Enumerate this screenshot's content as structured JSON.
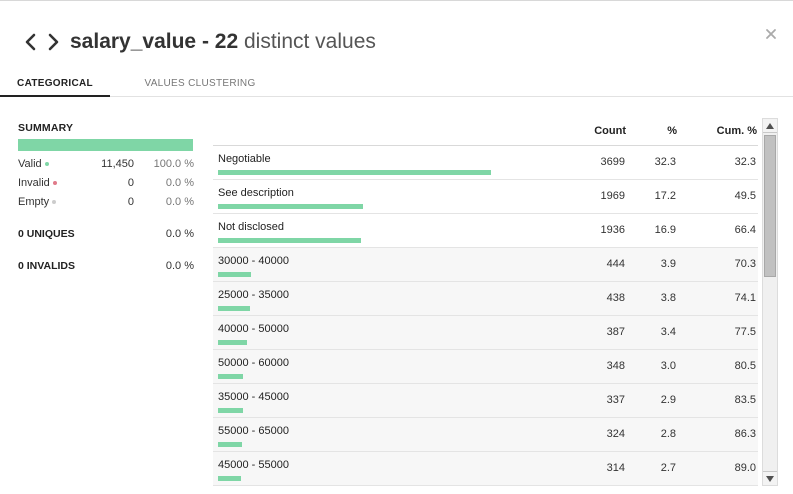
{
  "header": {
    "column_name": "salary_value",
    "separator": " - ",
    "distinct_count": "22",
    "distinct_suffix": " distinct values"
  },
  "tabs": [
    {
      "label": "CATEGORICAL",
      "active": true
    },
    {
      "label": "VALUES CLUSTERING",
      "active": false
    }
  ],
  "summary": {
    "title": "SUMMARY",
    "rows": [
      {
        "label": "Valid",
        "count": "11,450",
        "pct": "100.0 %",
        "dot_color": "#7fd6a6"
      },
      {
        "label": "Invalid",
        "count": "0",
        "pct": "0.0 %",
        "dot_color": "#e07b8a"
      },
      {
        "label": "Empty",
        "count": "0",
        "pct": "0.0 %",
        "dot_color": "#cccccc"
      }
    ],
    "uniques": {
      "label": "0 UNIQUES",
      "pct": "0.0 %"
    },
    "invalids": {
      "label": "0 INVALIDS",
      "pct": "0.0 %"
    }
  },
  "table": {
    "headers": {
      "count": "Count",
      "pct": "%",
      "cum": "Cum. %"
    },
    "rows": [
      {
        "value": "Negotiable",
        "count": "3699",
        "pct": "32.3",
        "cum": "32.3",
        "share": 0.323
      },
      {
        "value": "See description",
        "count": "1969",
        "pct": "17.2",
        "cum": "49.5",
        "share": 0.172
      },
      {
        "value": "Not disclosed",
        "count": "1936",
        "pct": "16.9",
        "cum": "66.4",
        "share": 0.169
      },
      {
        "value": "30000 - 40000",
        "count": "444",
        "pct": "3.9",
        "cum": "70.3",
        "share": 0.039
      },
      {
        "value": "25000 - 35000",
        "count": "438",
        "pct": "3.8",
        "cum": "74.1",
        "share": 0.038
      },
      {
        "value": "40000 - 50000",
        "count": "387",
        "pct": "3.4",
        "cum": "77.5",
        "share": 0.034
      },
      {
        "value": "50000 - 60000",
        "count": "348",
        "pct": "3.0",
        "cum": "80.5",
        "share": 0.03
      },
      {
        "value": "35000 - 45000",
        "count": "337",
        "pct": "2.9",
        "cum": "83.5",
        "share": 0.029
      },
      {
        "value": "55000 - 65000",
        "count": "324",
        "pct": "2.8",
        "cum": "86.3",
        "share": 0.028
      },
      {
        "value": "45000 - 55000",
        "count": "314",
        "pct": "2.7",
        "cum": "89.0",
        "share": 0.027
      }
    ]
  },
  "colors": {
    "bar": "#7fd6a6"
  },
  "icons": {
    "prev": "chevron-left-icon",
    "next": "chevron-right-icon",
    "close": "close-icon"
  }
}
